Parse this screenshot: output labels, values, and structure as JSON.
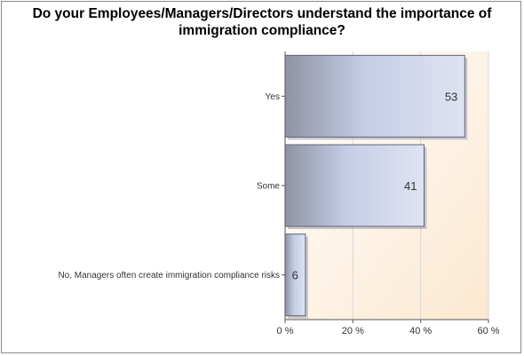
{
  "chart_data": {
    "type": "bar",
    "orientation": "horizontal",
    "title": "Do your Employees/Managers/Directors understand the importance of immigration compliance?",
    "categories": [
      "Yes",
      "Some",
      "No, Managers often create immigration compliance risks"
    ],
    "values": [
      53,
      41,
      6
    ],
    "value_labels": [
      "53",
      "41",
      "6"
    ],
    "xlim": [
      0,
      60
    ],
    "xticks": [
      0,
      20,
      40,
      60
    ],
    "xtick_labels": [
      "0 %",
      "20 %",
      "40 %",
      "60 %"
    ],
    "grid": true,
    "colors": {
      "bar_dark": "#8e93a3",
      "bar_light": "#c6cde6",
      "bar_edge": "#5f6478",
      "plot_bg_light": "#ffffff",
      "plot_bg_warm": "#fbe8cf",
      "grid": "#d8d8d8"
    }
  }
}
